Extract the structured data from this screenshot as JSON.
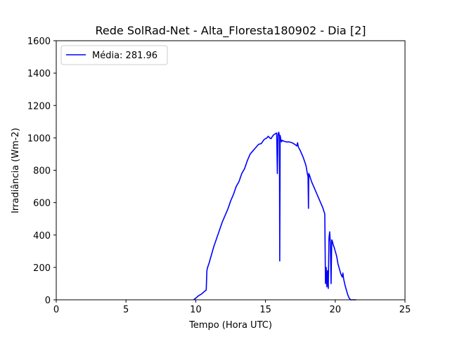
{
  "chart_data": {
    "type": "line",
    "title": "Rede SolRad-Net - Alta_Floresta180902 - Dia [2]",
    "xlabel": "Tempo (Hora UTC)",
    "ylabel": "Irradiância (Wm-2)",
    "xlim": [
      0,
      25
    ],
    "ylim": [
      0,
      1600
    ],
    "xticks": [
      0,
      5,
      10,
      15,
      20,
      25
    ],
    "yticks": [
      0,
      200,
      400,
      600,
      800,
      1000,
      1200,
      1400,
      1600
    ],
    "grid": false,
    "legend_position": "top-left",
    "series_color": "#0000ff",
    "series": [
      {
        "name": "Média: 281.96",
        "x": [
          9.85,
          10.0,
          10.2,
          10.4,
          10.6,
          10.75,
          10.8,
          10.85,
          10.95,
          11.1,
          11.3,
          11.5,
          11.7,
          11.9,
          12.1,
          12.3,
          12.5,
          12.7,
          12.9,
          13.1,
          13.3,
          13.5,
          13.7,
          13.9,
          14.1,
          14.3,
          14.5,
          14.7,
          14.9,
          15.1,
          15.2,
          15.3,
          15.4,
          15.5,
          15.6,
          15.7,
          15.8,
          15.85,
          15.9,
          15.95,
          16.0,
          16.02,
          16.05,
          16.08,
          16.1,
          16.12,
          16.15,
          16.2,
          16.3,
          16.5,
          16.7,
          16.9,
          17.1,
          17.25,
          17.3,
          17.35,
          17.5,
          17.7,
          17.9,
          18.0,
          18.05,
          18.08,
          18.1,
          18.15,
          18.3,
          18.5,
          18.7,
          18.9,
          19.1,
          19.25,
          19.3,
          19.35,
          19.4,
          19.45,
          19.5,
          19.55,
          19.6,
          19.65,
          19.7,
          19.75,
          19.8,
          19.85,
          19.9,
          20.0,
          20.1,
          20.2,
          20.3,
          20.4,
          20.5,
          20.55,
          20.6,
          20.7,
          20.8,
          20.9,
          21.0,
          21.1,
          21.2,
          21.3,
          21.4,
          21.5
        ],
        "y": [
          0,
          10,
          25,
          35,
          50,
          60,
          180,
          200,
          225,
          270,
          330,
          380,
          430,
          480,
          520,
          560,
          610,
          650,
          700,
          730,
          780,
          810,
          860,
          900,
          920,
          940,
          960,
          965,
          990,
          1000,
          1010,
          1000,
          995,
          1010,
          1020,
          1025,
          1030,
          780,
          1020,
          1035,
          1010,
          240,
          1015,
          1000,
          990,
          985,
          975,
          985,
          980,
          975,
          975,
          970,
          960,
          950,
          970,
          945,
          920,
          880,
          830,
          780,
          760,
          565,
          780,
          770,
          730,
          690,
          650,
          610,
          570,
          530,
          100,
          200,
          80,
          180,
          70,
          380,
          420,
          350,
          100,
          370,
          360,
          340,
          330,
          300,
          270,
          220,
          190,
          160,
          140,
          165,
          130,
          90,
          60,
          30,
          10,
          0,
          0,
          0,
          0,
          0
        ]
      }
    ]
  }
}
